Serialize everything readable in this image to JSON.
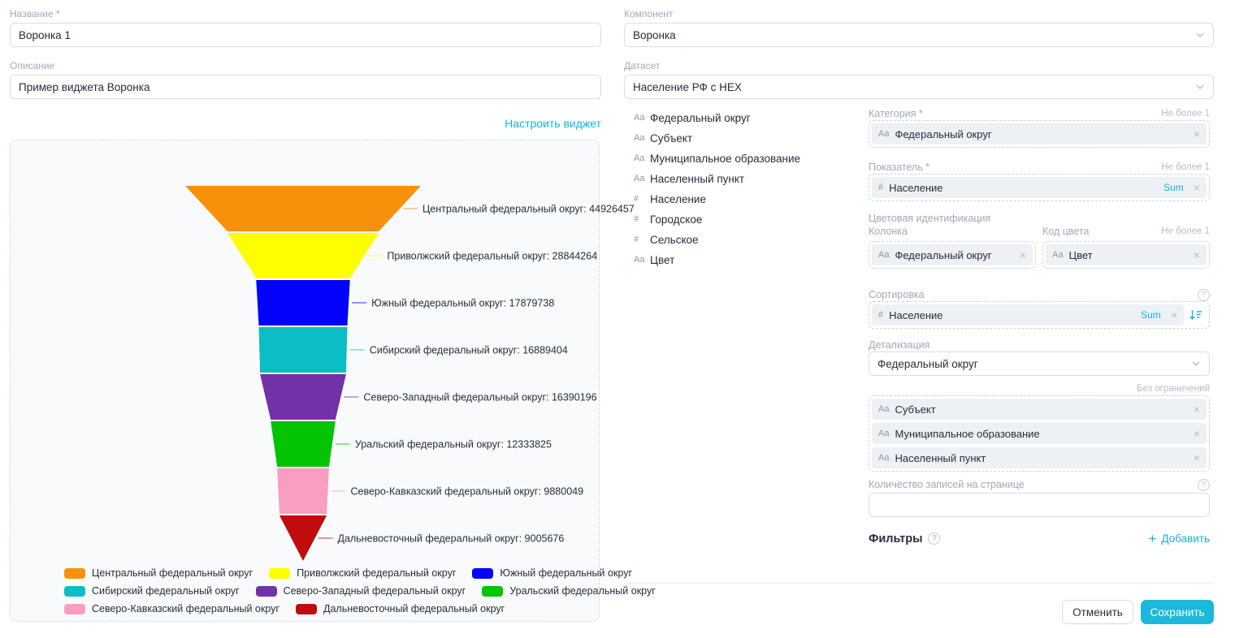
{
  "accent_color": "#17B4D8",
  "left": {
    "name_label": "Название *",
    "name_value": "Воронка 1",
    "description_label": "Описание",
    "description_value": "Пример виджета Воронка",
    "configure_link": "Настроить виджет"
  },
  "chart_data": {
    "type": "funnel",
    "label_format": "name: value",
    "legend_position": "bottom-left",
    "series": [
      {
        "name": "Центральный федеральный округ",
        "value": 44926457,
        "color": "#F7910B"
      },
      {
        "name": "Приволжский федеральный округ",
        "value": 28844264,
        "color": "#FEFE00"
      },
      {
        "name": "Южный федеральный округ",
        "value": 17879738,
        "color": "#0202FE"
      },
      {
        "name": "Сибирский федеральный округ",
        "value": 16889404,
        "color": "#0BBDC5"
      },
      {
        "name": "Северо-Западный федеральный округ",
        "value": 16390196,
        "color": "#7231A9"
      },
      {
        "name": "Уральский федеральный округ",
        "value": 12333825,
        "color": "#02C402"
      },
      {
        "name": "Северо-Кавказский федеральный округ",
        "value": 9880049,
        "color": "#FA9DC3"
      },
      {
        "name": "Дальневосточный федеральный округ",
        "value": 9005676,
        "color": "#C00C0C"
      }
    ]
  },
  "right": {
    "component_label": "Компонент",
    "component_value": "Воронка",
    "dataset_label": "Датасет",
    "dataset_value": "Население РФ с HEX",
    "fields": [
      {
        "type": "Aa",
        "name": "Федеральный округ"
      },
      {
        "type": "Aa",
        "name": "Субъект"
      },
      {
        "type": "Aa",
        "name": "Муниципальное образование"
      },
      {
        "type": "Aa",
        "name": "Населенный пункт"
      },
      {
        "type": "#",
        "name": "Население"
      },
      {
        "type": "#",
        "name": "Городское"
      },
      {
        "type": "#",
        "name": "Сельское"
      },
      {
        "type": "Aa",
        "name": "Цвет"
      }
    ],
    "category": {
      "label": "Категория *",
      "hint": "Не более 1",
      "chip": {
        "prefix": "Aa",
        "text": "Федеральный округ"
      }
    },
    "measure": {
      "label": "Показатель *",
      "hint": "Не более 1",
      "chip": {
        "prefix": "#",
        "text": "Население",
        "agg": "Sum"
      }
    },
    "color_ident": {
      "label": "Цветовая идентификация",
      "column_label": "Колонка",
      "code_label": "Код цвета",
      "hint": "Не более 1",
      "column_chip": {
        "prefix": "Aa",
        "text": "Федеральный округ"
      },
      "code_chip": {
        "prefix": "Aa",
        "text": "Цвет"
      }
    },
    "sorting": {
      "label": "Сортировка",
      "chip": {
        "prefix": "#",
        "text": "Население",
        "agg": "Sum"
      }
    },
    "detail": {
      "label": "Детализация",
      "value": "Федеральный округ",
      "hint": "Без ограничений",
      "chips": [
        {
          "prefix": "Aa",
          "text": "Субъект"
        },
        {
          "prefix": "Aa",
          "text": "Муниципальное образование"
        },
        {
          "prefix": "Aa",
          "text": "Населенный пункт"
        }
      ]
    },
    "page_size": {
      "label": "Количество записей на странице",
      "value": ""
    },
    "filters": {
      "label": "Фильтры",
      "add_label": "Добавить"
    },
    "cancel_label": "Отменить",
    "save_label": "Сохранить"
  }
}
